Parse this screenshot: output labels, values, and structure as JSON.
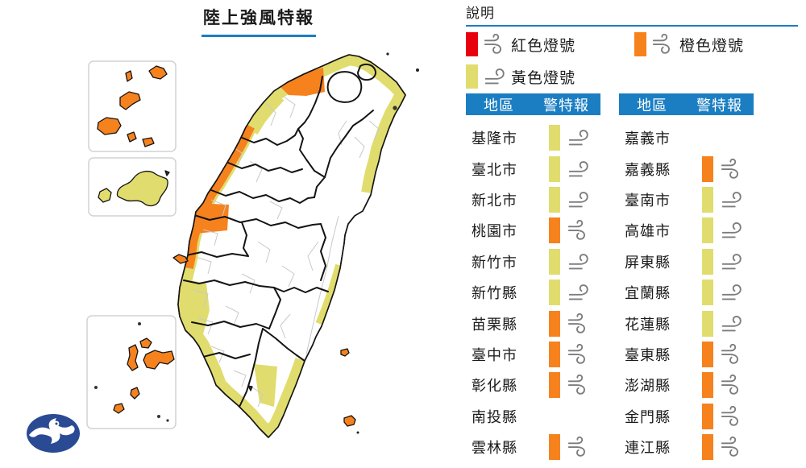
{
  "title": "陸上強風特報",
  "legend": {
    "heading": "說明",
    "items": [
      {
        "label": "紅色燈號",
        "signal": "red",
        "wind": "strong"
      },
      {
        "label": "橙色燈號",
        "signal": "orange",
        "wind": "strong"
      },
      {
        "label": "黃色燈號",
        "signal": "yellow",
        "wind": "light"
      }
    ]
  },
  "tables": [
    {
      "headers": [
        "地區",
        "警特報"
      ],
      "rows": [
        {
          "region": "基隆市",
          "signal": "yellow",
          "wind": "light"
        },
        {
          "region": "臺北市",
          "signal": "yellow",
          "wind": "light"
        },
        {
          "region": "新北市",
          "signal": "yellow",
          "wind": "light"
        },
        {
          "region": "桃園市",
          "signal": "orange",
          "wind": "strong"
        },
        {
          "region": "新竹市",
          "signal": "yellow",
          "wind": "light"
        },
        {
          "region": "新竹縣",
          "signal": "yellow",
          "wind": "light"
        },
        {
          "region": "苗栗縣",
          "signal": "orange",
          "wind": "strong"
        },
        {
          "region": "臺中市",
          "signal": "orange",
          "wind": "strong"
        },
        {
          "region": "彰化縣",
          "signal": "orange",
          "wind": "strong"
        },
        {
          "region": "南投縣",
          "signal": "none",
          "wind": "none"
        },
        {
          "region": "雲林縣",
          "signal": "orange",
          "wind": "strong"
        }
      ]
    },
    {
      "headers": [
        "地區",
        "警特報"
      ],
      "rows": [
        {
          "region": "嘉義市",
          "signal": "none",
          "wind": "none"
        },
        {
          "region": "嘉義縣",
          "signal": "orange",
          "wind": "strong"
        },
        {
          "region": "臺南市",
          "signal": "yellow",
          "wind": "light"
        },
        {
          "region": "高雄市",
          "signal": "yellow",
          "wind": "light"
        },
        {
          "region": "屏東縣",
          "signal": "yellow",
          "wind": "light"
        },
        {
          "region": "宜蘭縣",
          "signal": "yellow",
          "wind": "light"
        },
        {
          "region": "花蓮縣",
          "signal": "yellow",
          "wind": "light"
        },
        {
          "region": "臺東縣",
          "signal": "orange",
          "wind": "strong"
        },
        {
          "region": "澎湖縣",
          "signal": "orange",
          "wind": "strong"
        },
        {
          "region": "金門縣",
          "signal": "orange",
          "wind": "strong"
        },
        {
          "region": "連江縣",
          "signal": "orange",
          "wind": "strong"
        }
      ]
    }
  ],
  "colors": {
    "blue": "#1b7ec2",
    "red": "#e8000d",
    "orange": "#f6821d",
    "yellow": "#e0dd6e",
    "none": "transparent"
  },
  "icons": {
    "strong_wind": "strong-wind-icon",
    "light_wind": "light-wind-icon",
    "logo": "cwb-logo"
  }
}
